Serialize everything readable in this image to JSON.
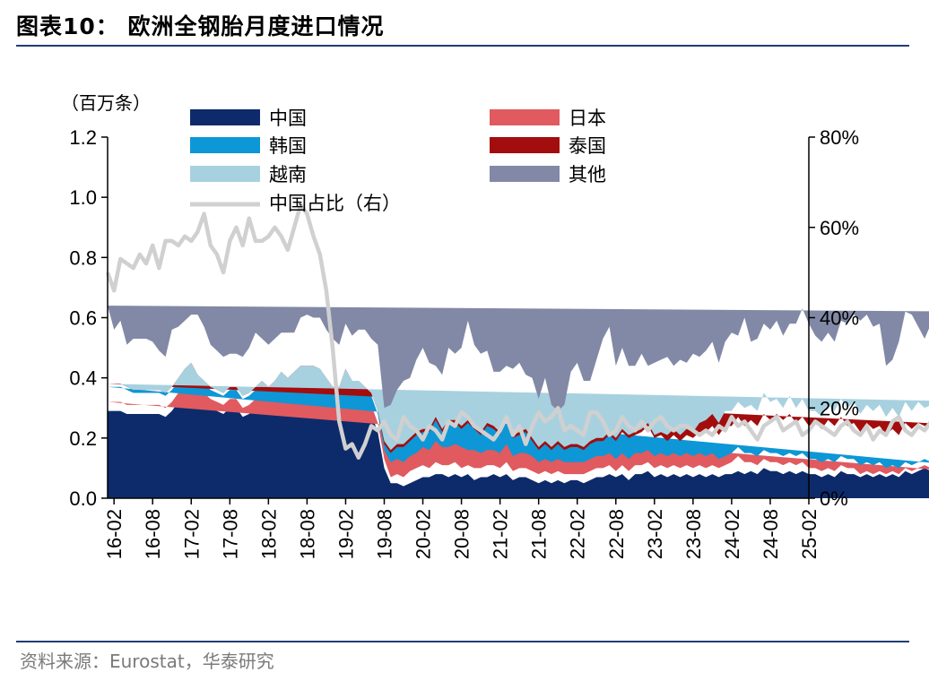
{
  "title": "图表10： 欧洲全钢胎月度进口情况",
  "source": "资料来源：Eurostat，华泰研究",
  "chart_data": {
    "type": "area",
    "stacked": true,
    "left_unit": "（百万条）",
    "left_ylim": [
      0,
      1.2
    ],
    "left_ticks": [
      "0.0",
      "0.2",
      "0.4",
      "0.6",
      "0.8",
      "1.0",
      "1.2"
    ],
    "right_ylim": [
      0,
      80
    ],
    "right_ticks": [
      "0%",
      "20%",
      "40%",
      "60%",
      "80%"
    ],
    "x_tick_labels": [
      "16-02",
      "16-08",
      "17-02",
      "17-08",
      "18-02",
      "18-08",
      "19-02",
      "19-08",
      "20-02",
      "20-08",
      "21-02",
      "21-08",
      "22-02",
      "22-08",
      "23-02",
      "23-08",
      "24-02",
      "24-08",
      "25-02"
    ],
    "x_start": "2016-01",
    "x_end": "2025-02",
    "colors": {
      "中国": "#0d2b6b",
      "日本": "#e05a5f",
      "韩国": "#0d97d6",
      "泰国": "#a30d0d",
      "越南": "#a8d1e0",
      "其他": "#8289a6",
      "中国占比（右）": "#d0d0d0"
    },
    "series": [
      {
        "name": "中国",
        "axis": "left",
        "values": [
          0.29,
          0.29,
          0.29,
          0.28,
          0.28,
          0.28,
          0.28,
          0.28,
          0.28,
          0.27,
          0.29,
          0.32,
          0.35,
          0.37,
          0.34,
          0.32,
          0.3,
          0.29,
          0.28,
          0.3,
          0.3,
          0.27,
          0.28,
          0.3,
          0.32,
          0.3,
          0.32,
          0.35,
          0.33,
          0.35,
          0.37,
          0.37,
          0.37,
          0.36,
          0.33,
          0.3,
          0.3,
          0.36,
          0.32,
          0.32,
          0.3,
          0.28,
          0.22,
          0.1,
          0.05,
          0.05,
          0.04,
          0.05,
          0.06,
          0.07,
          0.07,
          0.08,
          0.08,
          0.07,
          0.08,
          0.07,
          0.08,
          0.06,
          0.07,
          0.07,
          0.08,
          0.07,
          0.08,
          0.06,
          0.07,
          0.07,
          0.06,
          0.05,
          0.06,
          0.05,
          0.06,
          0.05,
          0.06,
          0.06,
          0.05,
          0.06,
          0.07,
          0.07,
          0.08,
          0.07,
          0.08,
          0.06,
          0.08,
          0.08,
          0.09,
          0.07,
          0.08,
          0.07,
          0.08,
          0.07,
          0.08,
          0.07,
          0.08,
          0.07,
          0.08,
          0.07,
          0.08,
          0.08,
          0.09,
          0.08,
          0.09,
          0.08,
          0.1,
          0.09,
          0.09,
          0.08,
          0.09,
          0.08,
          0.09,
          0.08,
          0.08,
          0.07,
          0.08,
          0.07,
          0.09,
          0.08,
          0.08,
          0.07,
          0.08,
          0.07,
          0.08,
          0.07,
          0.08,
          0.07,
          0.09,
          0.08,
          0.09,
          0.1,
          0.09,
          0.1,
          0.11,
          0.1,
          0.11,
          0.1,
          0.1,
          0.08,
          0.09,
          0.07,
          0.08,
          0.09
        ]
      },
      {
        "name": "日本",
        "axis": "left",
        "values": [
          0.03,
          0.03,
          0.03,
          0.03,
          0.03,
          0.03,
          0.03,
          0.03,
          0.03,
          0.03,
          0.03,
          0.03,
          0.03,
          0.03,
          0.03,
          0.03,
          0.03,
          0.03,
          0.03,
          0.03,
          0.03,
          0.03,
          0.03,
          0.03,
          0.03,
          0.03,
          0.03,
          0.03,
          0.03,
          0.03,
          0.03,
          0.03,
          0.03,
          0.03,
          0.03,
          0.03,
          0.03,
          0.03,
          0.03,
          0.03,
          0.03,
          0.03,
          0.03,
          0.03,
          0.02,
          0.03,
          0.03,
          0.04,
          0.04,
          0.04,
          0.03,
          0.04,
          0.03,
          0.04,
          0.04,
          0.03,
          0.03,
          0.04,
          0.03,
          0.04,
          0.03,
          0.03,
          0.04,
          0.03,
          0.03,
          0.03,
          0.03,
          0.03,
          0.03,
          0.03,
          0.03,
          0.03,
          0.02,
          0.02,
          0.03,
          0.03,
          0.03,
          0.03,
          0.03,
          0.02,
          0.03,
          0.03,
          0.03,
          0.03,
          0.03,
          0.03,
          0.03,
          0.03,
          0.03,
          0.03,
          0.03,
          0.03,
          0.03,
          0.03,
          0.03,
          0.03,
          0.03,
          0.04,
          0.05,
          0.04,
          0.03,
          0.03,
          0.03,
          0.03,
          0.03,
          0.03,
          0.03,
          0.03,
          0.03,
          0.02,
          0.02,
          0.02,
          0.02,
          0.02,
          0.02,
          0.02,
          0.02,
          0.01,
          0.01,
          0.01,
          0.01,
          0.01,
          0.01,
          0.01,
          0.01,
          0.01,
          0.01,
          0.01,
          0.01,
          0.01,
          0.01,
          0.01,
          0.01,
          0.01,
          0.01,
          0.01,
          0.01,
          0.01
        ]
      },
      {
        "name": "韩国",
        "axis": "left",
        "values": [
          0.05,
          0.05,
          0.05,
          0.05,
          0.04,
          0.04,
          0.04,
          0.04,
          0.04,
          0.04,
          0.04,
          0.04,
          0.04,
          0.04,
          0.03,
          0.03,
          0.03,
          0.03,
          0.03,
          0.03,
          0.03,
          0.03,
          0.03,
          0.03,
          0.03,
          0.03,
          0.03,
          0.03,
          0.03,
          0.03,
          0.03,
          0.03,
          0.03,
          0.03,
          0.03,
          0.03,
          0.03,
          0.03,
          0.03,
          0.03,
          0.03,
          0.03,
          0.03,
          0.03,
          0.05,
          0.05,
          0.05,
          0.05,
          0.05,
          0.06,
          0.06,
          0.07,
          0.06,
          0.06,
          0.06,
          0.07,
          0.05,
          0.06,
          0.05,
          0.05,
          0.05,
          0.05,
          0.06,
          0.05,
          0.05,
          0.05,
          0.05,
          0.04,
          0.04,
          0.04,
          0.04,
          0.04,
          0.04,
          0.04,
          0.04,
          0.04,
          0.04,
          0.04,
          0.04,
          0.04,
          0.04,
          0.04,
          0.04,
          0.04,
          0.04,
          0.04,
          0.04,
          0.04,
          0.04,
          0.04,
          0.04,
          0.04,
          0.04,
          0.04,
          0.04,
          0.03,
          0.03,
          0.03,
          0.03,
          0.03,
          0.03,
          0.03,
          0.03,
          0.03,
          0.03,
          0.03,
          0.03,
          0.03,
          0.03,
          0.03,
          0.03,
          0.03,
          0.03,
          0.03,
          0.03,
          0.03,
          0.03,
          0.03,
          0.03,
          0.03,
          0.03,
          0.02,
          0.02,
          0.02,
          0.02,
          0.02,
          0.02,
          0.02,
          0.02,
          0.02,
          0.02,
          0.02,
          0.02,
          0.02,
          0.02,
          0.02,
          0.02,
          0.02,
          0.02,
          0.02,
          0.02,
          0.02
        ]
      },
      {
        "name": "泰国",
        "axis": "left",
        "values": [
          0.01,
          0.01,
          0.01,
          0.01,
          0.01,
          0.01,
          0.01,
          0.01,
          0.01,
          0.01,
          0.01,
          0.01,
          0.01,
          0.01,
          0.01,
          0.01,
          0.01,
          0.01,
          0.01,
          0.01,
          0.01,
          0.01,
          0.01,
          0.01,
          0.01,
          0.01,
          0.01,
          0.01,
          0.01,
          0.01,
          0.01,
          0.01,
          0.01,
          0.01,
          0.01,
          0.01,
          0.01,
          0.01,
          0.01,
          0.01,
          0.01,
          0.01,
          0.01,
          0.02,
          0.03,
          0.04,
          0.05,
          0.05,
          0.06,
          0.05,
          0.06,
          0.07,
          0.05,
          0.08,
          0.07,
          0.06,
          0.09,
          0.07,
          0.06,
          0.08,
          0.07,
          0.06,
          0.08,
          0.06,
          0.06,
          0.07,
          0.05,
          0.04,
          0.05,
          0.04,
          0.05,
          0.04,
          0.05,
          0.05,
          0.04,
          0.05,
          0.05,
          0.05,
          0.06,
          0.06,
          0.07,
          0.07,
          0.06,
          0.07,
          0.08,
          0.06,
          0.06,
          0.05,
          0.06,
          0.05,
          0.06,
          0.06,
          0.07,
          0.08,
          0.09,
          0.08,
          0.1,
          0.09,
          0.1,
          0.09,
          0.11,
          0.1,
          0.12,
          0.11,
          0.13,
          0.12,
          0.13,
          0.11,
          0.12,
          0.11,
          0.12,
          0.11,
          0.13,
          0.12,
          0.13,
          0.11,
          0.12,
          0.11,
          0.13,
          0.12,
          0.12,
          0.11,
          0.12,
          0.11,
          0.13,
          0.12,
          0.13,
          0.11,
          0.12,
          0.11,
          0.12,
          0.12,
          0.12,
          0.12,
          0.13,
          0.13,
          0.14,
          0.14,
          0.13,
          0.13
        ]
      },
      {
        "name": "越南",
        "axis": "left",
        "values": [
          0.0,
          0.0,
          0.0,
          0.0,
          0.0,
          0.0,
          0.0,
          0.0,
          0.0,
          0.0,
          0.0,
          0.0,
          0.0,
          0.0,
          0.0,
          0.0,
          0.0,
          0.0,
          0.0,
          0.0,
          0.0,
          0.0,
          0.0,
          0.0,
          0.0,
          0.0,
          0.0,
          0.0,
          0.0,
          0.0,
          0.0,
          0.0,
          0.0,
          0.0,
          0.0,
          0.0,
          0.0,
          0.0,
          0.0,
          0.0,
          0.0,
          0.0,
          0.0,
          0.01,
          0.01,
          0.01,
          0.01,
          0.01,
          0.01,
          0.01,
          0.01,
          0.01,
          0.01,
          0.01,
          0.01,
          0.01,
          0.01,
          0.01,
          0.01,
          0.01,
          0.01,
          0.01,
          0.01,
          0.01,
          0.01,
          0.01,
          0.01,
          0.01,
          0.01,
          0.01,
          0.01,
          0.01,
          0.01,
          0.01,
          0.01,
          0.01,
          0.01,
          0.01,
          0.01,
          0.01,
          0.01,
          0.01,
          0.01,
          0.01,
          0.01,
          0.01,
          0.01,
          0.02,
          0.02,
          0.02,
          0.02,
          0.02,
          0.03,
          0.04,
          0.04,
          0.04,
          0.05,
          0.05,
          0.05,
          0.06,
          0.05,
          0.05,
          0.07,
          0.06,
          0.05,
          0.04,
          0.06,
          0.05,
          0.06,
          0.05,
          0.04,
          0.04,
          0.05,
          0.05,
          0.06,
          0.06,
          0.07,
          0.06,
          0.06,
          0.06,
          0.07,
          0.06,
          0.07,
          0.06,
          0.07,
          0.06,
          0.07,
          0.06,
          0.07,
          0.06,
          0.07,
          0.08,
          0.09,
          0.1,
          0.11,
          0.11,
          0.05,
          0.08,
          0.1
        ]
      },
      {
        "name": "其他",
        "axis": "left",
        "values": [
          0.26,
          0.18,
          0.21,
          0.14,
          0.17,
          0.17,
          0.17,
          0.16,
          0.13,
          0.12,
          0.19,
          0.17,
          0.16,
          0.16,
          0.2,
          0.18,
          0.14,
          0.13,
          0.12,
          0.11,
          0.11,
          0.13,
          0.15,
          0.18,
          0.14,
          0.14,
          0.14,
          0.13,
          0.15,
          0.13,
          0.16,
          0.17,
          0.16,
          0.17,
          0.16,
          0.16,
          0.14,
          0.15,
          0.15,
          0.17,
          0.19,
          0.18,
          0.22,
          0.11,
          0.15,
          0.18,
          0.21,
          0.2,
          0.24,
          0.27,
          0.22,
          0.17,
          0.18,
          0.24,
          0.22,
          0.26,
          0.33,
          0.27,
          0.26,
          0.24,
          0.18,
          0.2,
          0.17,
          0.22,
          0.23,
          0.18,
          0.2,
          0.16,
          0.21,
          0.14,
          0.1,
          0.14,
          0.24,
          0.27,
          0.22,
          0.2,
          0.26,
          0.33,
          0.35,
          0.24,
          0.27,
          0.23,
          0.22,
          0.25,
          0.19,
          0.24,
          0.24,
          0.26,
          0.21,
          0.25,
          0.22,
          0.26,
          0.22,
          0.23,
          0.24,
          0.2,
          0.23,
          0.26,
          0.22,
          0.3,
          0.21,
          0.24,
          0.23,
          0.24,
          0.26,
          0.24,
          0.24,
          0.28,
          0.3,
          0.29,
          0.25,
          0.25,
          0.24,
          0.23,
          0.26,
          0.28,
          0.29,
          0.31,
          0.3,
          0.28,
          0.27,
          0.17,
          0.16,
          0.25,
          0.3,
          0.32,
          0.25,
          0.23,
          0.27,
          0.32,
          0.26,
          0.3,
          0.36,
          0.35,
          0.4,
          0.46,
          0.42,
          0.3,
          0.32,
          0.3
        ]
      },
      {
        "name": "中国占比（右）",
        "axis": "right",
        "values": [
          50,
          46,
          53,
          52,
          51,
          54,
          52,
          56,
          51,
          57,
          57,
          56,
          58,
          57,
          59,
          63,
          56,
          54,
          50,
          57,
          60,
          56,
          62,
          57,
          57,
          58,
          60,
          58,
          55,
          60,
          65,
          63,
          58,
          54,
          46,
          33,
          17,
          11,
          12,
          9,
          12,
          16,
          15,
          17,
          14,
          13,
          18,
          16,
          15,
          13,
          16,
          15,
          13,
          17,
          16,
          19,
          18,
          16,
          15,
          14,
          13,
          15,
          18,
          14,
          16,
          12,
          16,
          19,
          17,
          18,
          20,
          15,
          16,
          15,
          14,
          19,
          19,
          17,
          14,
          15,
          18,
          16,
          15,
          17,
          15,
          17,
          18,
          16,
          15,
          16,
          16,
          15,
          14,
          15,
          14,
          16,
          15,
          18,
          16,
          17,
          15,
          13,
          16,
          17,
          18,
          15,
          16,
          17,
          14,
          15,
          17,
          16,
          15,
          14,
          16,
          17,
          15,
          14,
          16,
          13,
          15,
          14,
          17,
          18,
          15,
          14,
          16,
          15,
          17,
          15,
          13,
          17,
          18,
          16,
          15,
          16,
          15,
          14,
          12,
          13
        ]
      }
    ]
  }
}
